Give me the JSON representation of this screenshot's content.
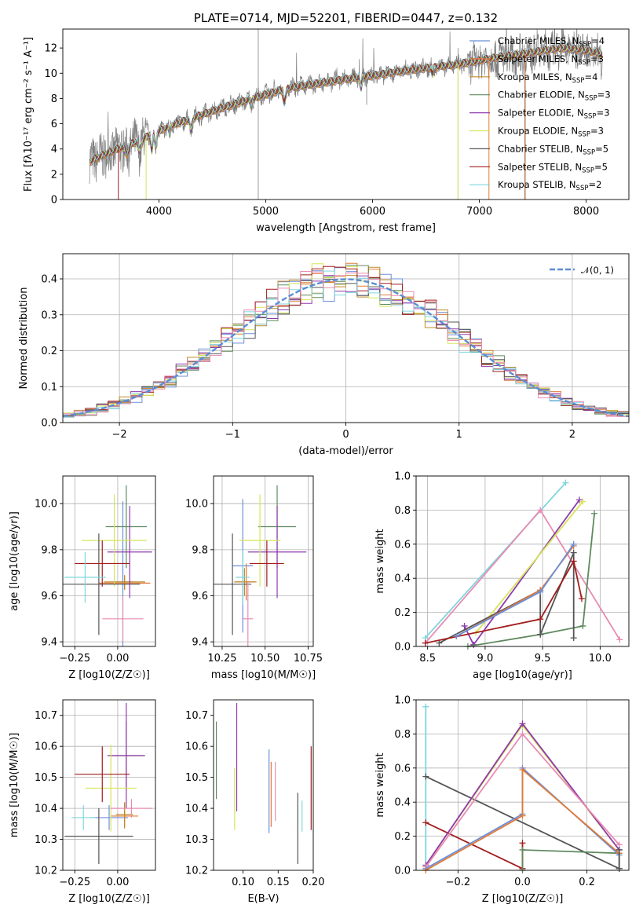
{
  "colors": {
    "Chabrier MILES": "#6b8fd9",
    "Salpeter MILES": "#e07b39",
    "Kroupa MILES": "#c08a2a",
    "Chabrier ELODIE": "#5f8a5f",
    "Salpeter ELODIE": "#8e3aad",
    "Kroupa ELODIE": "#d6e55a",
    "Chabrier STELIB": "#555555",
    "Salpeter STELIB": "#a31c1c",
    "Kroupa STELIB": "#7fd6dd",
    "pink": "#e88bb3",
    "data": "#7f7f7f"
  },
  "chart_data": [
    {
      "id": "spectrum",
      "type": "line",
      "title": "PLATE=0714, MJD=52201, FIBERID=0447, z=0.132",
      "xlabel": "wavelength [Angstrom, rest frame]",
      "ylabel": "Flux [fλ10⁻¹⁷ erg cm⁻² s⁻¹ A⁻¹]",
      "xlim": [
        3100,
        8400
      ],
      "ylim": [
        0,
        13.5
      ],
      "xticks": [
        4000,
        5000,
        6000,
        7000,
        8000
      ],
      "yticks": [
        0,
        2,
        4,
        6,
        8,
        10,
        12
      ],
      "legend": [
        "Chabrier MILES, N_SSP=4",
        "Salpeter MILES, N_SSP=3",
        "Kroupa MILES, N_SSP=4",
        "Chabrier ELODIE, N_SSP=3",
        "Salpeter ELODIE, N_SSP=3",
        "Kroupa ELODIE, N_SSP=3",
        "Chabrier STELIB, N_SSP=5",
        "Salpeter STELIB, N_SSP=5",
        "Kroupa STELIB, N_SSP=2"
      ],
      "continuum_x": [
        3350,
        3500,
        3700,
        3900,
        4100,
        4300,
        4500,
        4800,
        5000,
        5200,
        5500,
        5800,
        6000,
        6300,
        6600,
        6800,
        7000,
        7200,
        7400,
        7600,
        7800,
        8000,
        8150
      ],
      "continuum_y": [
        3.0,
        3.6,
        4.3,
        5.0,
        5.8,
        6.4,
        7.0,
        7.8,
        8.3,
        8.8,
        9.2,
        9.6,
        9.8,
        10.2,
        10.5,
        10.7,
        11.0,
        11.3,
        11.5,
        11.8,
        12.0,
        11.8,
        11.5
      ]
    },
    {
      "id": "residuals",
      "type": "histogram",
      "xlabel": "(data-model)/error",
      "ylabel": "Normed distribution",
      "xlim": [
        -2.5,
        2.5
      ],
      "ylim": [
        0,
        0.47
      ],
      "xticks": [
        -2,
        -1,
        0,
        1,
        2
      ],
      "yticks": [
        0.0,
        0.1,
        0.2,
        0.3,
        0.4
      ],
      "legend": [
        "𝒩(0, 1)"
      ],
      "bin_width": 0.1
    },
    {
      "id": "age-vs-Z",
      "type": "errorbar",
      "xlabel": "Z [log10(Z/Z☉)]",
      "ylabel": "age  [log10(age/yr)]",
      "xlim": [
        -0.32,
        0.22
      ],
      "ylim": [
        9.38,
        10.12
      ],
      "xticks": [
        -0.25,
        0.0
      ],
      "yticks": [
        9.4,
        9.6,
        9.8,
        10.0
      ],
      "points": [
        {
          "series": "Chabrier MILES",
          "x": 0.03,
          "xerr": 0.06,
          "y": 9.66,
          "yerr": 0.35
        },
        {
          "series": "Salpeter MILES",
          "x": 0.04,
          "xerr": 0.15,
          "y": 9.655,
          "yerr": 0.03
        },
        {
          "series": "Kroupa MILES",
          "x": 0.04,
          "xerr": 0.12,
          "y": 9.66,
          "yerr": 0.03
        },
        {
          "series": "Chabrier ELODIE",
          "x": 0.05,
          "xerr": 0.12,
          "y": 9.9,
          "yerr": 0.18
        },
        {
          "series": "Salpeter ELODIE",
          "x": 0.07,
          "xerr": 0.13,
          "y": 9.79,
          "yerr": 0.2
        },
        {
          "series": "Kroupa ELODIE",
          "x": -0.02,
          "xerr": 0.19,
          "y": 9.84,
          "yerr": 0.2
        },
        {
          "series": "Chabrier STELIB",
          "x": -0.11,
          "xerr": 0.24,
          "y": 9.65,
          "yerr": 0.22
        },
        {
          "series": "Salpeter STELIB",
          "x": -0.09,
          "xerr": 0.16,
          "y": 9.74,
          "yerr": 0.1
        },
        {
          "series": "Kroupa STELIB",
          "x": -0.19,
          "xerr": 0.12,
          "y": 9.68,
          "yerr": 0.11
        },
        {
          "series": "pink",
          "x": 0.03,
          "xerr": 0.12,
          "y": 9.5,
          "yerr": 0.1
        }
      ]
    },
    {
      "id": "age-vs-mass",
      "type": "errorbar",
      "xlabel": "mass [log10(M/M☉)]",
      "ylabel": "",
      "xlim": [
        10.2,
        10.78
      ],
      "ylim": [
        9.38,
        10.12
      ],
      "xticks": [
        10.25,
        10.5,
        10.75
      ],
      "yticks": [
        9.4,
        9.6,
        9.8,
        10.0
      ],
      "points": [
        {
          "series": "Chabrier MILES",
          "x": 10.37,
          "xerr": 0.06,
          "y": 9.73,
          "yerr": 0.29
        },
        {
          "series": "Salpeter MILES",
          "x": 10.39,
          "xerr": 0.06,
          "y": 9.66,
          "yerr": 0.08
        },
        {
          "series": "Kroupa MILES",
          "x": 10.38,
          "xerr": 0.06,
          "y": 9.66,
          "yerr": 0.06
        },
        {
          "series": "Chabrier ELODIE",
          "x": 10.57,
          "xerr": 0.11,
          "y": 9.9,
          "yerr": 0.18
        },
        {
          "series": "Salpeter ELODIE",
          "x": 10.57,
          "xerr": 0.17,
          "y": 9.79,
          "yerr": 0.2
        },
        {
          "series": "Kroupa ELODIE",
          "x": 10.47,
          "xerr": 0.12,
          "y": 9.84,
          "yerr": 0.2
        },
        {
          "series": "Chabrier STELIB",
          "x": 10.31,
          "xerr": 0.11,
          "y": 9.65,
          "yerr": 0.22
        },
        {
          "series": "Salpeter STELIB",
          "x": 10.51,
          "xerr": 0.1,
          "y": 9.74,
          "yerr": 0.1
        },
        {
          "series": "Kroupa STELIB",
          "x": 10.37,
          "xerr": 0.04,
          "y": 9.68,
          "yerr": 0.12
        },
        {
          "series": "pink",
          "x": 10.4,
          "xerr": 0.03,
          "y": 9.5,
          "yerr": 0.16
        }
      ]
    },
    {
      "id": "mass-weight-vs-age",
      "type": "line",
      "xlabel": "age  [log10(age/yr)]",
      "ylabel": "mass weight",
      "xlim": [
        8.4,
        10.25
      ],
      "ylim": [
        0,
        1.0
      ],
      "xticks": [
        8.5,
        9.0,
        9.5,
        10.0
      ],
      "yticks": [
        0.0,
        0.2,
        0.4,
        0.6,
        0.8,
        1.0
      ],
      "series": [
        {
          "series": "Kroupa STELIB",
          "x": [
            8.48,
            9.7
          ],
          "y": [
            0.05,
            0.96
          ]
        },
        {
          "series": "pink",
          "x": [
            8.48,
            9.48,
            10.17
          ],
          "y": [
            0.02,
            0.8,
            0.04
          ]
        },
        {
          "series": "Salpeter ELODIE",
          "x": [
            8.82,
            8.9,
            9.82
          ],
          "y": [
            0.12,
            0.01,
            0.86
          ]
        },
        {
          "series": "Kroupa ELODIE",
          "x": [
            8.92,
            9.85
          ],
          "y": [
            0.08,
            0.85
          ]
        },
        {
          "series": "Chabrier ELODIE",
          "x": [
            8.85,
            9.48,
            9.85,
            9.95
          ],
          "y": [
            0.0,
            0.07,
            0.12,
            0.78
          ]
        },
        {
          "series": "Chabrier STELIB",
          "x": [
            8.6,
            9.48,
            9.48,
            9.77,
            9.77
          ],
          "y": [
            0.02,
            0.33,
            0.07,
            0.55,
            0.05
          ]
        },
        {
          "series": "Salpeter STELIB",
          "x": [
            8.48,
            9.48,
            9.77,
            9.84
          ],
          "y": [
            0.02,
            0.16,
            0.5,
            0.28
          ]
        },
        {
          "series": "Salpeter MILES",
          "x": [
            8.75,
            9.48,
            9.77
          ],
          "y": [
            0.06,
            0.33,
            0.59
          ]
        },
        {
          "series": "Chabrier MILES",
          "x": [
            8.75,
            9.48,
            9.77
          ],
          "y": [
            0.06,
            0.32,
            0.6
          ]
        }
      ]
    },
    {
      "id": "mass-vs-Z",
      "type": "errorbar",
      "xlabel": "Z [log10(Z/Z☉)]",
      "ylabel": "mass [log10(M/M☉)]",
      "xlim": [
        -0.32,
        0.22
      ],
      "ylim": [
        10.2,
        10.75
      ],
      "xticks": [
        -0.25,
        0.0
      ],
      "yticks": [
        10.2,
        10.3,
        10.4,
        10.5,
        10.6,
        10.7
      ],
      "points": [
        {
          "series": "Chabrier MILES",
          "x": -0.05,
          "xerr": 0.11,
          "y": 10.37,
          "yerr": 0.04
        },
        {
          "series": "Salpeter MILES",
          "x": 0.04,
          "xerr": 0.08,
          "y": 10.375,
          "yerr": 0.04
        },
        {
          "series": "Kroupa MILES",
          "x": 0.04,
          "xerr": 0.05,
          "y": 10.38,
          "yerr": 0.04
        },
        {
          "series": "Chabrier ELODIE",
          "x": 0.05,
          "xerr": 0.1,
          "y": 10.57,
          "yerr": 0.11
        },
        {
          "series": "Salpeter ELODIE",
          "x": 0.05,
          "xerr": 0.11,
          "y": 10.57,
          "yerr": 0.17
        },
        {
          "series": "Kroupa ELODIE",
          "x": -0.04,
          "xerr": 0.15,
          "y": 10.465,
          "yerr": 0.14
        },
        {
          "series": "Chabrier STELIB",
          "x": -0.11,
          "xerr": 0.2,
          "y": 10.31,
          "yerr": 0.09
        },
        {
          "series": "Salpeter STELIB",
          "x": -0.09,
          "xerr": 0.16,
          "y": 10.51,
          "yerr": 0.09
        },
        {
          "series": "Kroupa STELIB",
          "x": -0.2,
          "xerr": 0.07,
          "y": 10.37,
          "yerr": 0.04
        },
        {
          "series": "pink",
          "x": 0.08,
          "xerr": 0.12,
          "y": 10.4,
          "yerr": 0.03
        }
      ]
    },
    {
      "id": "mass-vs-ebv",
      "type": "errorbar",
      "xlabel": "E(B-V)",
      "ylabel": "",
      "xlim": [
        0.058,
        0.2
      ],
      "ylim": [
        10.2,
        10.75
      ],
      "xticks": [
        0.1,
        0.15,
        0.2
      ],
      "yticks": [
        10.2,
        10.3,
        10.4,
        10.5,
        10.6,
        10.7
      ],
      "points": [
        {
          "series": "Chabrier ELODIE",
          "x": 0.062,
          "xerr": 0,
          "y": 10.555,
          "yerr": 0.125
        },
        {
          "series": "Kroupa ELODIE",
          "x": 0.088,
          "xerr": 0,
          "y": 10.43,
          "yerr": 0.1
        },
        {
          "series": "Salpeter ELODIE",
          "x": 0.091,
          "xerr": 0,
          "y": 10.565,
          "yerr": 0.175
        },
        {
          "series": "Chabrier MILES",
          "x": 0.137,
          "xerr": 0,
          "y": 10.455,
          "yerr": 0.135
        },
        {
          "series": "Salpeter MILES",
          "x": 0.14,
          "xerr": 0,
          "y": 10.445,
          "yerr": 0.105
        },
        {
          "series": "pink",
          "x": 0.146,
          "xerr": 0,
          "y": 10.455,
          "yerr": 0.095
        },
        {
          "series": "Chabrier STELIB",
          "x": 0.178,
          "xerr": 0,
          "y": 10.335,
          "yerr": 0.115
        },
        {
          "series": "Kroupa STELIB",
          "x": 0.184,
          "xerr": 0,
          "y": 10.375,
          "yerr": 0.05
        },
        {
          "series": "Salpeter STELIB",
          "x": 0.197,
          "xerr": 0,
          "y": 10.465,
          "yerr": 0.135
        }
      ]
    },
    {
      "id": "mass-weight-vs-Z",
      "type": "line",
      "xlabel": "Z [log10(Z/Z☉)]",
      "ylabel": "mass weight",
      "xlim": [
        -0.33,
        0.33
      ],
      "ylim": [
        0,
        1.0
      ],
      "xticks": [
        -0.2,
        0.0,
        0.2
      ],
      "yticks": [
        0.0,
        0.2,
        0.4,
        0.6,
        0.8,
        1.0
      ],
      "series": [
        {
          "series": "Kroupa STELIB",
          "x": [
            -0.3,
            -0.3
          ],
          "y": [
            0.96,
            0.03
          ]
        },
        {
          "series": "Chabrier STELIB",
          "x": [
            -0.3,
            0.3
          ],
          "y": [
            0.55,
            0.01
          ]
        },
        {
          "series": "Salpeter STELIB",
          "x": [
            -0.3,
            0.0,
            0.0
          ],
          "y": [
            0.28,
            0.01,
            0.16
          ]
        },
        {
          "series": "Kroupa ELODIE",
          "x": [
            -0.3,
            0.0,
            0.3
          ],
          "y": [
            0.03,
            0.85,
            0.12
          ]
        },
        {
          "series": "Salpeter ELODIE",
          "x": [
            -0.3,
            0.0,
            0.3
          ],
          "y": [
            0.03,
            0.86,
            0.12
          ]
        },
        {
          "series": "pink",
          "x": [
            -0.3,
            0.0,
            0.3
          ],
          "y": [
            0.02,
            0.8,
            0.15
          ]
        },
        {
          "series": "Chabrier ELODIE",
          "x": [
            0.0,
            0.0,
            0.3,
            0.3
          ],
          "y": [
            0.0,
            0.12,
            0.1,
            0.01
          ]
        },
        {
          "series": "Chabrier MILES",
          "x": [
            -0.3,
            0.0,
            0.0,
            0.3
          ],
          "y": [
            0.01,
            0.33,
            0.6,
            0.09
          ]
        },
        {
          "series": "Salpeter MILES",
          "x": [
            -0.3,
            0.0,
            0.0,
            0.3
          ],
          "y": [
            0.0,
            0.32,
            0.59,
            0.1
          ]
        },
        {
          "series": "Chabrier STELIB",
          "x": [
            0.3,
            0.3
          ],
          "y": [
            0.12,
            0.01
          ]
        }
      ]
    }
  ]
}
